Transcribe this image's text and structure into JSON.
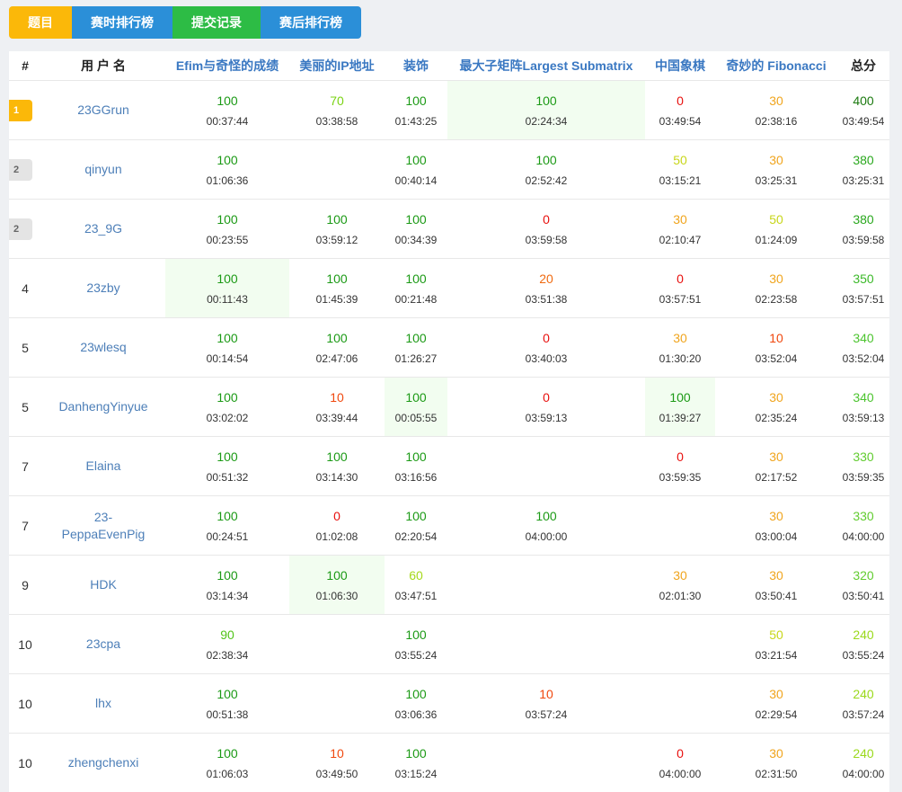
{
  "tabs": [
    {
      "label": "题目",
      "color": "#fbb809"
    },
    {
      "label": "赛时排行榜",
      "color": "#2b8fd8"
    },
    {
      "label": "提交记录",
      "color": "#2dbc45"
    },
    {
      "label": "赛后排行榜",
      "color": "#2b8fd8"
    }
  ],
  "headers": {
    "rank": "#",
    "user": "用 户 名",
    "problems": [
      "Efim与奇怪的成绩",
      "美丽的IP地址",
      "装饰",
      "最大子矩阵Largest Submatrix",
      "中国象棋",
      "奇妙的 Fibonacci"
    ],
    "total": "总分"
  },
  "colors": {
    "s100": "#1c9a16",
    "s90": "#52c41a",
    "s70": "#7ad313",
    "s60": "#a6d91b",
    "s50": "#c8d61a",
    "s30": "#f0a51e",
    "s20": "#f06a10",
    "s10": "#f0480e",
    "s0": "#e8100e",
    "gold": "#fbb809",
    "silver": "#e4e4e4",
    "first_blood_bg": "#f2fdf0"
  },
  "rows": [
    {
      "rank": "1",
      "badge": "gold",
      "user": "23GGrun",
      "cells": [
        {
          "s": "100",
          "t": "00:37:44"
        },
        {
          "s": "70",
          "t": "03:38:58"
        },
        {
          "s": "100",
          "t": "01:43:25"
        },
        {
          "s": "100",
          "t": "02:24:34",
          "fb": true
        },
        {
          "s": "0",
          "t": "03:49:54"
        },
        {
          "s": "30",
          "t": "02:38:16"
        }
      ],
      "total": {
        "s": "400",
        "t": "03:49:54"
      }
    },
    {
      "rank": "2",
      "badge": "silver",
      "user": "qinyun",
      "cells": [
        {
          "s": "100",
          "t": "01:06:36"
        },
        null,
        {
          "s": "100",
          "t": "00:40:14"
        },
        {
          "s": "100",
          "t": "02:52:42"
        },
        {
          "s": "50",
          "t": "03:15:21"
        },
        {
          "s": "30",
          "t": "03:25:31"
        }
      ],
      "total": {
        "s": "380",
        "t": "03:25:31"
      }
    },
    {
      "rank": "2",
      "badge": "silver",
      "user": "23_9G",
      "cells": [
        {
          "s": "100",
          "t": "00:23:55"
        },
        {
          "s": "100",
          "t": "03:59:12"
        },
        {
          "s": "100",
          "t": "00:34:39"
        },
        {
          "s": "0",
          "t": "03:59:58"
        },
        {
          "s": "30",
          "t": "02:10:47"
        },
        {
          "s": "50",
          "t": "01:24:09"
        }
      ],
      "total": {
        "s": "380",
        "t": "03:59:58"
      }
    },
    {
      "rank": "4",
      "user": "23zby",
      "cells": [
        {
          "s": "100",
          "t": "00:11:43",
          "fb": true
        },
        {
          "s": "100",
          "t": "01:45:39"
        },
        {
          "s": "100",
          "t": "00:21:48"
        },
        {
          "s": "20",
          "t": "03:51:38"
        },
        {
          "s": "0",
          "t": "03:57:51"
        },
        {
          "s": "30",
          "t": "02:23:58"
        }
      ],
      "total": {
        "s": "350",
        "t": "03:57:51"
      }
    },
    {
      "rank": "5",
      "user": "23wlesq",
      "cells": [
        {
          "s": "100",
          "t": "00:14:54"
        },
        {
          "s": "100",
          "t": "02:47:06"
        },
        {
          "s": "100",
          "t": "01:26:27"
        },
        {
          "s": "0",
          "t": "03:40:03"
        },
        {
          "s": "30",
          "t": "01:30:20"
        },
        {
          "s": "10",
          "t": "03:52:04"
        }
      ],
      "total": {
        "s": "340",
        "t": "03:52:04"
      }
    },
    {
      "rank": "5",
      "user": "DanhengYinyue",
      "cells": [
        {
          "s": "100",
          "t": "03:02:02"
        },
        {
          "s": "10",
          "t": "03:39:44"
        },
        {
          "s": "100",
          "t": "00:05:55",
          "fb": true
        },
        {
          "s": "0",
          "t": "03:59:13"
        },
        {
          "s": "100",
          "t": "01:39:27",
          "fb": true
        },
        {
          "s": "30",
          "t": "02:35:24"
        }
      ],
      "total": {
        "s": "340",
        "t": "03:59:13"
      }
    },
    {
      "rank": "7",
      "user": "Elaina",
      "cells": [
        {
          "s": "100",
          "t": "00:51:32"
        },
        {
          "s": "100",
          "t": "03:14:30"
        },
        {
          "s": "100",
          "t": "03:16:56"
        },
        null,
        {
          "s": "0",
          "t": "03:59:35"
        },
        {
          "s": "30",
          "t": "02:17:52"
        }
      ],
      "total": {
        "s": "330",
        "t": "03:59:35"
      }
    },
    {
      "rank": "7",
      "user": "23-PeppaEvenPig",
      "cells": [
        {
          "s": "100",
          "t": "00:24:51"
        },
        {
          "s": "0",
          "t": "01:02:08"
        },
        {
          "s": "100",
          "t": "02:20:54"
        },
        {
          "s": "100",
          "t": "04:00:00"
        },
        null,
        {
          "s": "30",
          "t": "03:00:04"
        }
      ],
      "total": {
        "s": "330",
        "t": "04:00:00"
      }
    },
    {
      "rank": "9",
      "user": "HDK",
      "cells": [
        {
          "s": "100",
          "t": "03:14:34"
        },
        {
          "s": "100",
          "t": "01:06:30",
          "fb": true
        },
        {
          "s": "60",
          "t": "03:47:51"
        },
        null,
        {
          "s": "30",
          "t": "02:01:30"
        },
        {
          "s": "30",
          "t": "03:50:41"
        }
      ],
      "total": {
        "s": "320",
        "t": "03:50:41"
      }
    },
    {
      "rank": "10",
      "user": "23cpa",
      "cells": [
        {
          "s": "90",
          "t": "02:38:34"
        },
        null,
        {
          "s": "100",
          "t": "03:55:24"
        },
        null,
        null,
        {
          "s": "50",
          "t": "03:21:54"
        }
      ],
      "total": {
        "s": "240",
        "t": "03:55:24"
      }
    },
    {
      "rank": "10",
      "user": "lhx",
      "cells": [
        {
          "s": "100",
          "t": "00:51:38"
        },
        null,
        {
          "s": "100",
          "t": "03:06:36"
        },
        {
          "s": "10",
          "t": "03:57:24"
        },
        null,
        {
          "s": "30",
          "t": "02:29:54"
        }
      ],
      "total": {
        "s": "240",
        "t": "03:57:24"
      }
    },
    {
      "rank": "10",
      "user": "zhengchenxi",
      "cells": [
        {
          "s": "100",
          "t": "01:06:03"
        },
        {
          "s": "10",
          "t": "03:49:50"
        },
        {
          "s": "100",
          "t": "03:15:24"
        },
        null,
        {
          "s": "0",
          "t": "04:00:00"
        },
        {
          "s": "30",
          "t": "02:31:50"
        }
      ],
      "total": {
        "s": "240",
        "t": "04:00:00"
      }
    }
  ]
}
